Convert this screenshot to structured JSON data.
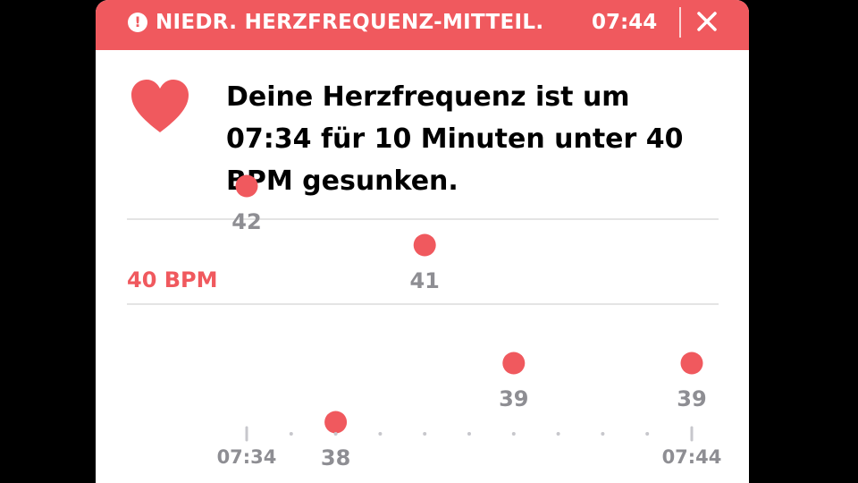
{
  "notification": {
    "title": "NIEDR. HERZFREQUENZ-MITTEIL.",
    "time": "07:44",
    "close_icon": "close-icon",
    "alert_icon": "exclamation-circle-icon",
    "banner_color": "#f0595e"
  },
  "message": {
    "icon": "heart-icon",
    "text": "Deine Herzfrequenz ist um 07:34 für 10 Minuten unter 40 BPM gesunken."
  },
  "chart_data": {
    "type": "scatter",
    "threshold_label": "40 BPM",
    "threshold_value": 40,
    "ylim": [
      36.9,
      43.7
    ],
    "x_tick_labels": [
      "07:34",
      "07:44"
    ],
    "x_range": [
      "07:34",
      "07:44"
    ],
    "points": [
      {
        "x": "07:34",
        "y": 42,
        "label": "42"
      },
      {
        "x": "07:36",
        "y": 38,
        "label": "38"
      },
      {
        "x": "07:38",
        "y": 41,
        "label": "41"
      },
      {
        "x": "07:40",
        "y": 39,
        "label": "39"
      },
      {
        "x": "07:44",
        "y": 39,
        "label": "39"
      }
    ],
    "point_color": "#f0595e"
  }
}
